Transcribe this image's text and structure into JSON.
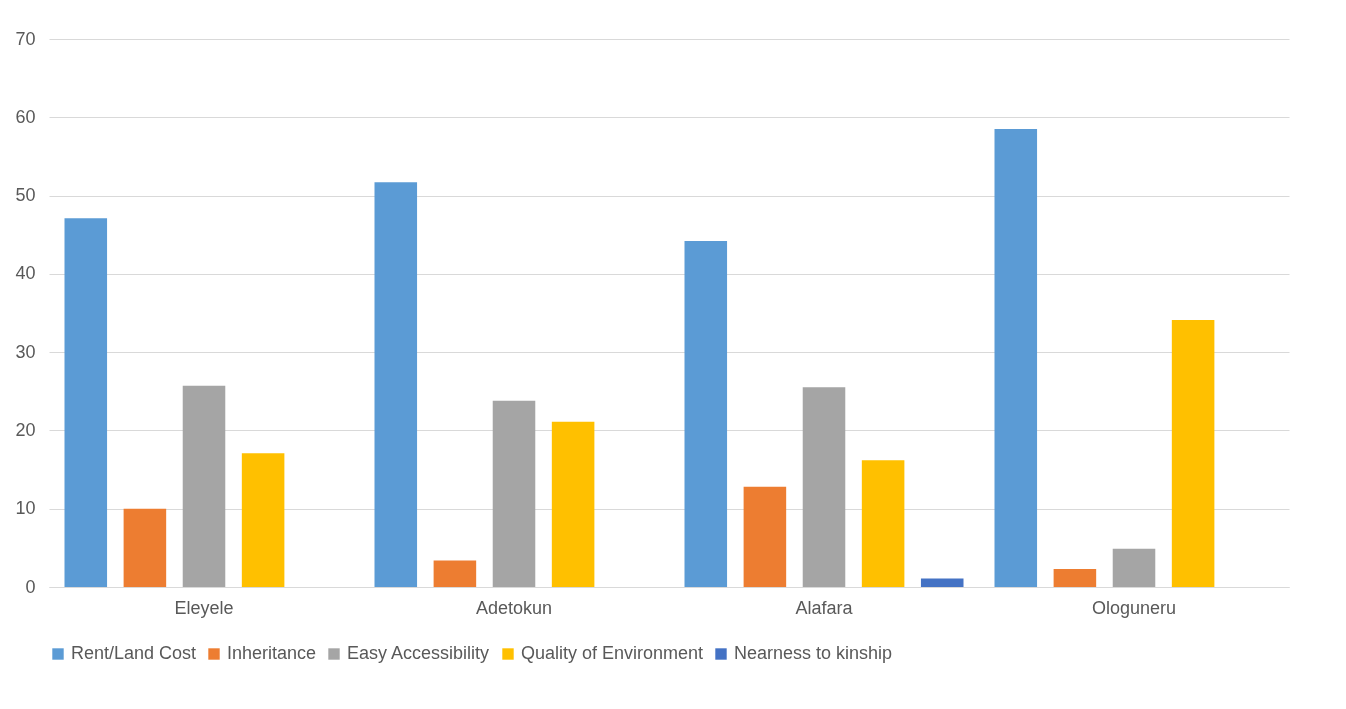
{
  "chart_data": {
    "type": "bar",
    "categories": [
      "Eleyele",
      "Adetokun",
      "Alafara",
      "Ologuneru"
    ],
    "series": [
      {
        "name": "Rent/Land Cost",
        "color": "#5b9bd5",
        "values": [
          47.1,
          51.7,
          44.2,
          58.5
        ]
      },
      {
        "name": "Inheritance",
        "color": "#ed7d31",
        "values": [
          10.0,
          3.4,
          12.8,
          2.3
        ]
      },
      {
        "name": "Easy Accessibility",
        "color": "#a5a5a5",
        "values": [
          25.7,
          23.8,
          25.5,
          4.9
        ]
      },
      {
        "name": "Quality of Environment",
        "color": "#ffc000",
        "values": [
          17.1,
          21.1,
          16.2,
          34.1
        ]
      },
      {
        "name": "Nearness to kinship",
        "color": "#4472c4",
        "values": [
          0,
          0,
          1.1,
          0
        ]
      }
    ],
    "ylim": [
      0,
      70
    ],
    "yticks": [
      0,
      10,
      20,
      30,
      40,
      50,
      60,
      70
    ],
    "grid": "y",
    "legend": "bottom"
  }
}
